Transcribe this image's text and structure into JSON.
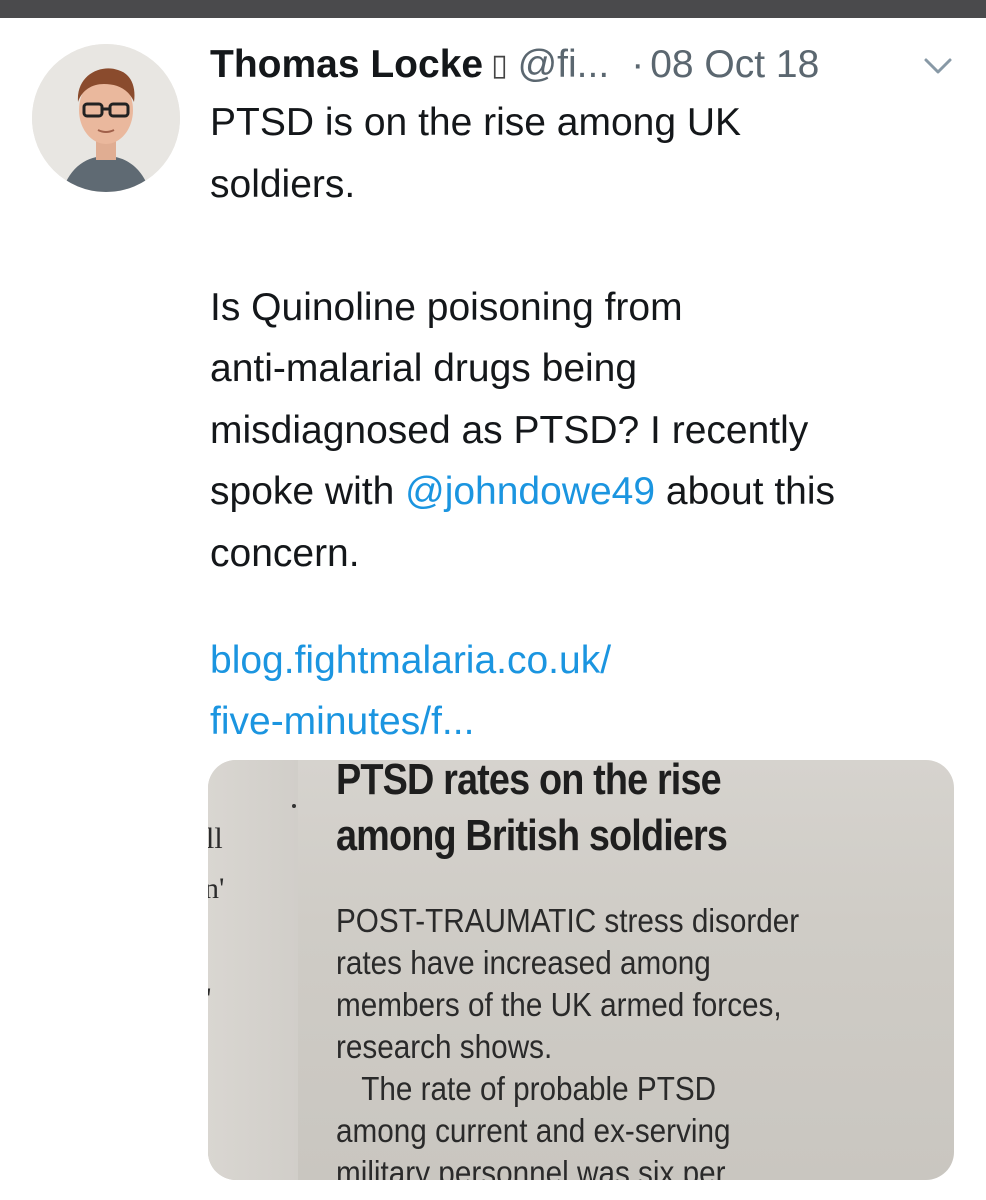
{
  "tweet": {
    "author_name": "Thomas Locke",
    "verified_glyph": "▯",
    "handle": "@fi...",
    "separator": "·",
    "date": "08 Oct 18",
    "paragraph1_line1": "PTSD is on the rise among UK",
    "paragraph1_line2": "soldiers.",
    "paragraph2_line1": "Is Quinoline poisoning from",
    "paragraph2_line2": "anti-malarial drugs being",
    "paragraph2_line3": "misdiagnosed as PTSD? I recently",
    "paragraph2_line4_pre": "spoke with ",
    "mention": "@johndowe49",
    "paragraph2_line4_post": " about this",
    "paragraph2_line5": "concern.",
    "url_line1": "blog.fightmalaria.co.uk/",
    "url_line2": "five-minutes/f..."
  },
  "card": {
    "headline_line1": "PTSD rates on the rise",
    "headline_line2": "among British soldiers",
    "body_line1": "POST-TRAUMATIC stress disorder",
    "body_line2": "rates have increased among",
    "body_line3": "members of the UK armed forces,",
    "body_line4": "research shows.",
    "body_line5": "The rate of probable PTSD",
    "body_line6": "among current and ex-serving",
    "body_line7": "military personnel was six per",
    "fragment1": "ll",
    "fragment2": "n'",
    "fragment3": "'"
  },
  "icons": {
    "avatar": "profile-photo",
    "menu": "chevron-down-icon"
  },
  "colors": {
    "link": "#1b95e0",
    "text": "#14171a",
    "muted": "#5b6770",
    "topbar": "#4a4a4c"
  }
}
